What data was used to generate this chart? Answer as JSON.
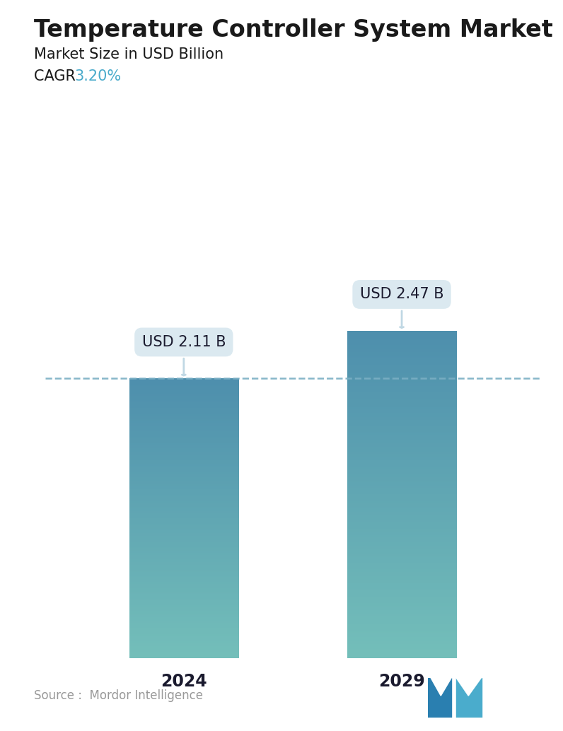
{
  "title": "Temperature Controller System Market",
  "subtitle": "Market Size in USD Billion",
  "cagr_label": "CAGR  ",
  "cagr_value": "3.20%",
  "cagr_color": "#4AABCB",
  "categories": [
    "2024",
    "2029"
  ],
  "values": [
    2.11,
    2.47
  ],
  "bar_labels": [
    "USD 2.11 B",
    "USD 2.47 B"
  ],
  "bar_top_color": "#4E8FAD",
  "bar_bottom_color": "#74BFBA",
  "dashed_line_color": "#7AAFC4",
  "background_color": "#FFFFFF",
  "title_fontsize": 24,
  "subtitle_fontsize": 15,
  "cagr_fontsize": 15,
  "bar_label_fontsize": 15,
  "tick_label_fontsize": 17,
  "source_text": "Source :  Mordor Intelligence",
  "source_fontsize": 12,
  "ylim": [
    0,
    3.2
  ],
  "bar_width": 0.22,
  "x_positions": [
    0.28,
    0.72
  ]
}
